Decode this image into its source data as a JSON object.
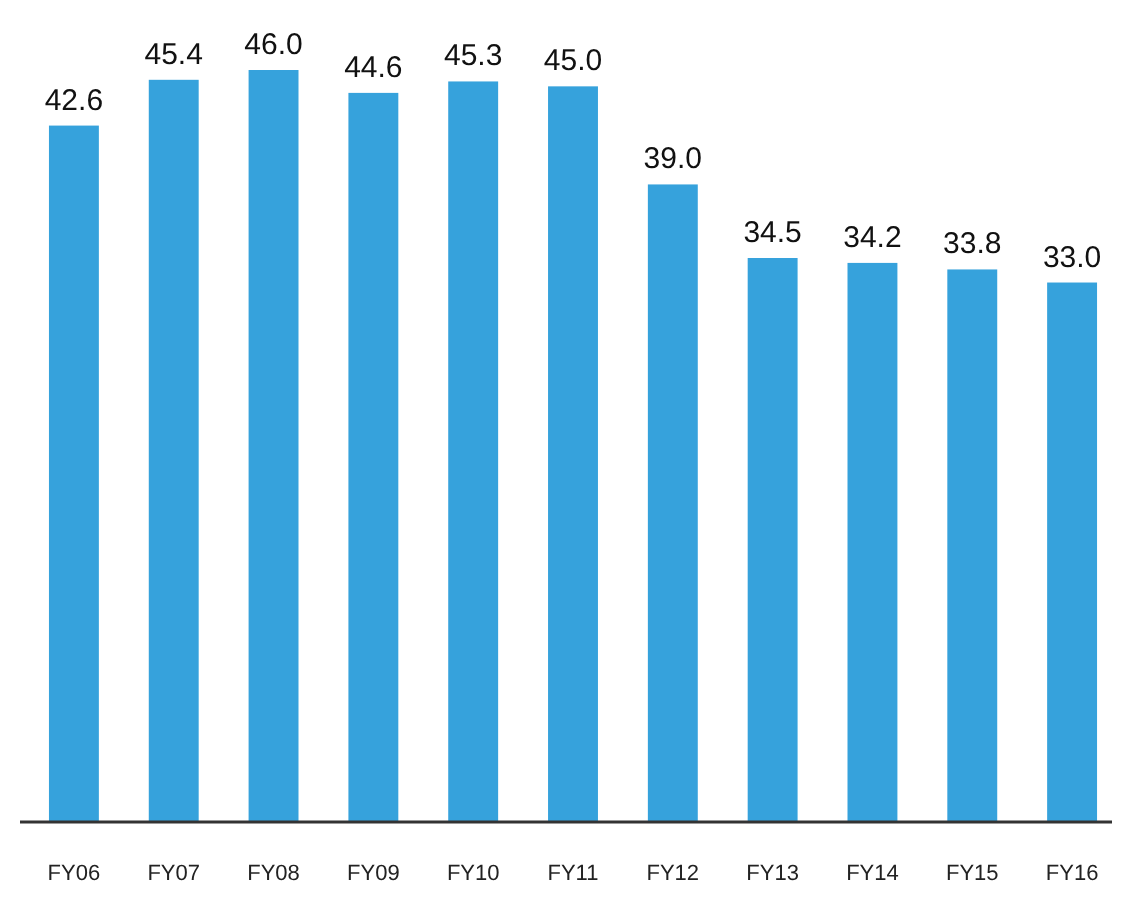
{
  "chart_data": {
    "type": "bar",
    "categories": [
      "FY06",
      "FY07",
      "FY08",
      "FY09",
      "FY10",
      "FY11",
      "FY12",
      "FY13",
      "FY14",
      "FY15",
      "FY16"
    ],
    "values": [
      42.6,
      45.4,
      46.0,
      44.6,
      45.3,
      45.0,
      39.0,
      34.5,
      34.2,
      33.8,
      33.0
    ],
    "value_labels": [
      "42.6",
      "45.4",
      "46.0",
      "44.6",
      "45.3",
      "45.0",
      "39.0",
      "34.5",
      "34.2",
      "33.8",
      "33.0"
    ],
    "color": "#36a2dc"
  }
}
